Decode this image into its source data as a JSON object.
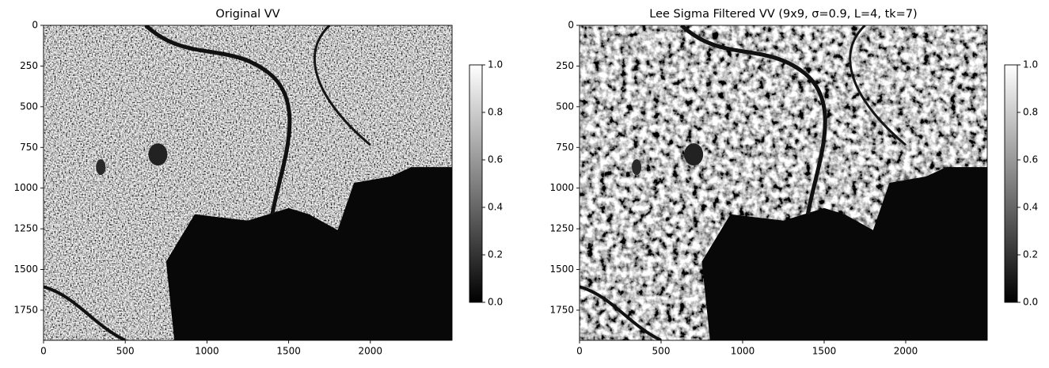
{
  "chart_data": [
    {
      "type": "image",
      "title": "Original VV",
      "colormap": "gray",
      "xlim": [
        0,
        2500
      ],
      "ylim": [
        1935,
        0
      ],
      "xticks": [
        0,
        500,
        1000,
        1500,
        2000
      ],
      "yticks": [
        0,
        250,
        500,
        750,
        1000,
        1250,
        1500,
        1750
      ],
      "colorbar": {
        "lim": [
          0,
          1
        ],
        "ticks": [
          {
            "value": 0,
            "label": "0.0"
          },
          {
            "value": 0.2,
            "label": "0.2"
          },
          {
            "value": 0.4,
            "label": "0.4"
          },
          {
            "value": 0.6,
            "label": "0.6"
          },
          {
            "value": 0.8,
            "label": "0.8"
          },
          {
            "value": 1,
            "label": "1.0"
          }
        ]
      }
    },
    {
      "type": "image",
      "title": "Lee Sigma Filtered VV (9x9, σ=0.9, L=4, tk=7)",
      "colormap": "gray",
      "xlim": [
        0,
        2500
      ],
      "ylim": [
        1935,
        0
      ],
      "xticks": [
        0,
        500,
        1000,
        1500,
        2000
      ],
      "yticks": [
        0,
        250,
        500,
        750,
        1000,
        1250,
        1500,
        1750
      ],
      "colorbar": {
        "lim": [
          0,
          1
        ],
        "ticks": [
          {
            "value": 0,
            "label": "0.0"
          },
          {
            "value": 0.2,
            "label": "0.2"
          },
          {
            "value": 0.4,
            "label": "0.4"
          },
          {
            "value": 0.6,
            "label": "0.6"
          },
          {
            "value": 0.8,
            "label": "0.8"
          },
          {
            "value": 1,
            "label": "1.0"
          }
        ]
      }
    }
  ]
}
